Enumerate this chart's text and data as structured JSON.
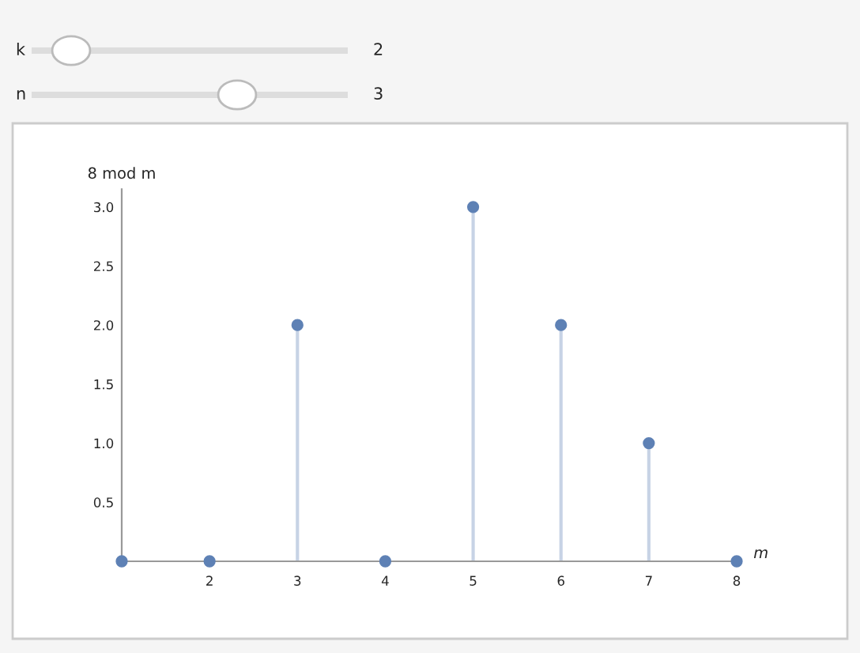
{
  "chart_data": {
    "type": "lollipop",
    "ylabel": "8 mod m",
    "xlabel": "m",
    "x": [
      1,
      2,
      3,
      4,
      5,
      6,
      7,
      8
    ],
    "series": [
      {
        "color": "#5e81b5",
        "values": [
          0,
          0,
          2,
          0,
          3,
          2,
          1,
          0
        ]
      }
    ],
    "xlim": [
      1,
      8.05
    ],
    "ylim": [
      0,
      3.15
    ],
    "xticks": [
      2,
      3,
      4,
      5,
      6,
      7,
      8
    ],
    "yticks": [
      {
        "value": 0.5,
        "label": "0.5"
      },
      {
        "value": 1,
        "label": "1.0"
      },
      {
        "value": 1.5,
        "label": "1.5"
      },
      {
        "value": 2,
        "label": "2.0"
      },
      {
        "value": 2.5,
        "label": "2.5"
      },
      {
        "value": 3,
        "label": "3.0"
      }
    ],
    "marker": "circle",
    "grid": false,
    "legend": false,
    "annotations": [
      "k",
      "2",
      "n",
      "3"
    ]
  }
}
